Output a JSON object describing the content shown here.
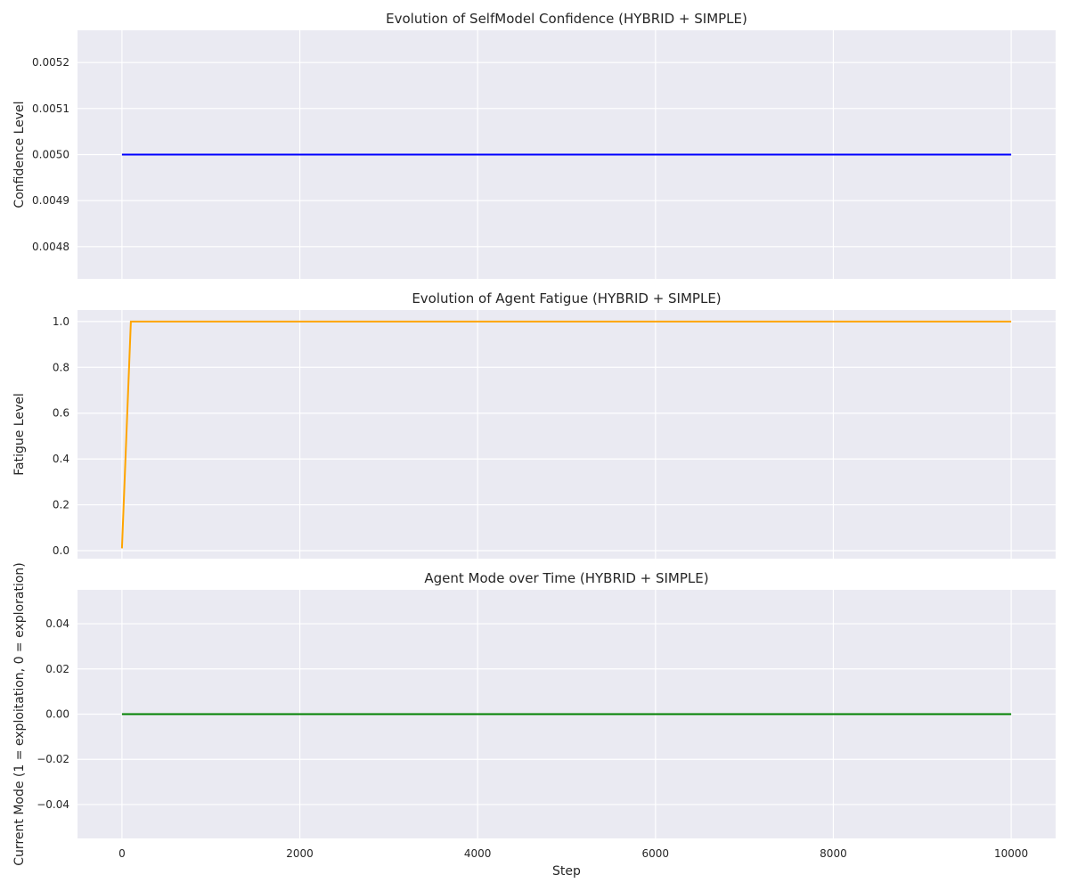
{
  "chart_data": [
    {
      "type": "line",
      "title": "Evolution of SelfModel Confidence (HYBRID + SIMPLE)",
      "xlabel": "",
      "ylabel": "Confidence Level",
      "xlim": [
        -500,
        10500
      ],
      "ylim": [
        0.00473,
        0.00527
      ],
      "xticks": [
        0,
        2000,
        4000,
        6000,
        8000,
        10000
      ],
      "xtick_labels": [],
      "yticks": [
        0.0048,
        0.0049,
        0.005,
        0.0051,
        0.0052
      ],
      "ytick_labels": [
        "0.0048",
        "0.0049",
        "0.0050",
        "0.0051",
        "0.0052"
      ],
      "grid": true,
      "series": [
        {
          "color": "#0000ff",
          "x": [
            0,
            10000
          ],
          "y": [
            0.005,
            0.005
          ]
        }
      ]
    },
    {
      "type": "line",
      "title": "Evolution of Agent Fatigue (HYBRID + SIMPLE)",
      "xlabel": "",
      "ylabel": "Fatigue Level",
      "xlim": [
        -500,
        10500
      ],
      "ylim": [
        -0.035,
        1.05
      ],
      "xticks": [
        0,
        2000,
        4000,
        6000,
        8000,
        10000
      ],
      "xtick_labels": [],
      "yticks": [
        0.0,
        0.2,
        0.4,
        0.6,
        0.8,
        1.0
      ],
      "ytick_labels": [
        "0.0",
        "0.2",
        "0.4",
        "0.6",
        "0.8",
        "1.0"
      ],
      "grid": true,
      "series": [
        {
          "color": "#ffa500",
          "x": [
            0,
            100,
            10000
          ],
          "y": [
            0.01,
            1.0,
            1.0
          ]
        }
      ]
    },
    {
      "type": "line",
      "title": "Agent Mode over Time (HYBRID + SIMPLE)",
      "xlabel": "Step",
      "ylabel": "Current Mode (1 = exploitation, 0 = exploration)",
      "xlim": [
        -500,
        10500
      ],
      "ylim": [
        -0.055,
        0.055
      ],
      "xticks": [
        0,
        2000,
        4000,
        6000,
        8000,
        10000
      ],
      "xtick_labels": [
        "0",
        "2000",
        "4000",
        "6000",
        "8000",
        "10000"
      ],
      "yticks": [
        -0.04,
        -0.02,
        0.0,
        0.02,
        0.04
      ],
      "ytick_labels": [
        "−0.04",
        "−0.02",
        "0.00",
        "0.02",
        "0.04"
      ],
      "grid": true,
      "series": [
        {
          "color": "#008000",
          "x": [
            0,
            10000
          ],
          "y": [
            0,
            0
          ]
        }
      ]
    }
  ]
}
